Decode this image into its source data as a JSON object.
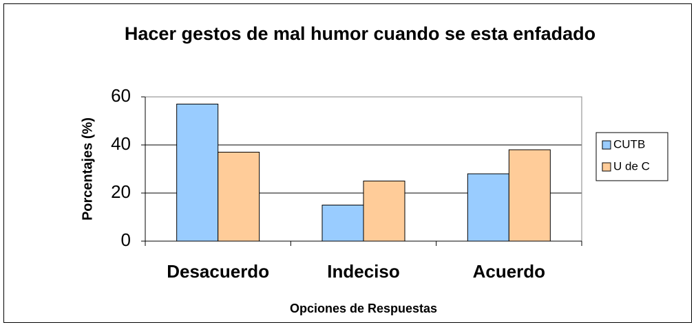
{
  "chart_data": {
    "type": "bar",
    "title": "Hacer gestos de mal humor cuando se esta enfadado",
    "x_label": "Opciones de Respuestas",
    "y_label": "Porcentajes (%)",
    "categories": [
      "Desacuerdo",
      "Indeciso",
      "Acuerdo"
    ],
    "series": [
      {
        "name": "CUTB",
        "color": "#99ccff",
        "values": [
          57,
          15,
          28
        ]
      },
      {
        "name": "U de C",
        "color": "#ffcc99",
        "values": [
          37,
          25,
          38
        ]
      }
    ],
    "ylim": [
      0,
      60
    ],
    "yticks": [
      0,
      20,
      40,
      60
    ],
    "grid": true,
    "legend": "right"
  }
}
